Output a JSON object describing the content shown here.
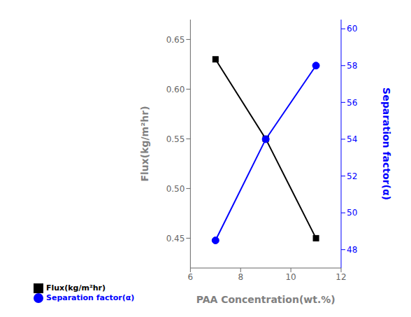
{
  "chart_data": {
    "type": "line",
    "xlabel": "PAA Concentration(wt.%)",
    "ylabel": "Flux(kg/m²hr)",
    "y2label": "Separation factor(α)",
    "x": [
      7,
      9,
      11
    ],
    "series": [
      {
        "name": "Flux(kg/m²hr)",
        "color": "black",
        "marker": "square",
        "values": [
          0.63,
          0.55,
          0.45
        ]
      },
      {
        "name": "Separation factor(α)",
        "color": "blue",
        "marker": "circle",
        "axis": "y2",
        "values": [
          48.5,
          54.0,
          58.0
        ]
      }
    ],
    "xlim": [
      6,
      12
    ],
    "xticks": [
      6,
      8,
      10,
      12
    ],
    "ylim": [
      0.42,
      0.67
    ],
    "yticks": [
      0.45,
      {
        "value": 0.5,
        "label": "0.50"
      },
      0.55,
      {
        "value": 0.6,
        "label": "0.60"
      },
      0.65
    ],
    "y2lim": [
      47.0,
      60.5
    ],
    "y2ticks": [
      48,
      50,
      52,
      54,
      56,
      58,
      60
    ],
    "legend": "lower left",
    "grid": false
  }
}
